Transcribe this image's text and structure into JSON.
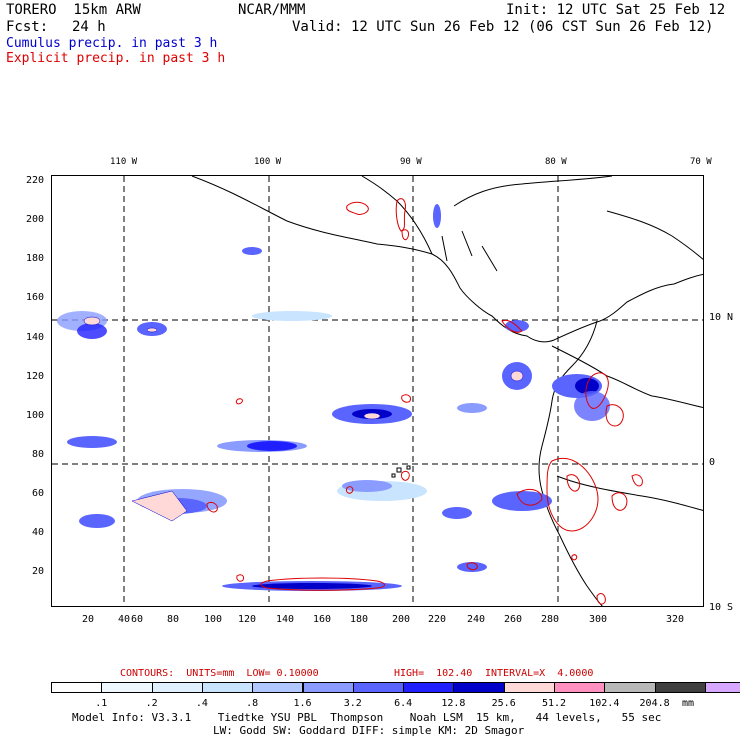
{
  "header": {
    "model": "TORERO  15km ARW",
    "org": "NCAR/MMM",
    "init": "Init: 12 UTC Sat 25 Feb 12",
    "fcst_label": "Fcst:",
    "fcst_value": "24 h",
    "valid": "Valid: 12 UTC Sun 26 Feb 12 (06 CST Sun 26 Feb 12)"
  },
  "legend": {
    "cumulus": "Cumulus precip. in past 3 h",
    "explicit": "Explicit precip. in past 3 h",
    "cumulus_color": "#0000cc",
    "explicit_color": "#dd0000"
  },
  "map": {
    "lon_labels": [
      "110 W",
      "100 W",
      "90 W",
      "80 W",
      "70 W"
    ],
    "lat_labels": [
      "10 N",
      "0",
      "10 S"
    ],
    "y_ticks": [
      "220",
      "200",
      "180",
      "160",
      "140",
      "120",
      "100",
      "80",
      "60",
      "40",
      "20"
    ],
    "x_ticks": [
      "20",
      "40",
      "60",
      "80",
      "100",
      "120",
      "140",
      "160",
      "180",
      "200",
      "220",
      "240",
      "260",
      "280",
      "300",
      "320"
    ]
  },
  "contours": {
    "units": "CONTOURS:  UNITS=mm  LOW= 0.10000",
    "high": "HIGH=  102.40",
    "interval": "INTERVAL=X  4.0000"
  },
  "colorbar": {
    "colors": [
      "#ffffff",
      "#f0f8ff",
      "#e0f0ff",
      "#c8e4ff",
      "#b0c8ff",
      "#8a9cff",
      "#5a64ff",
      "#2020ff",
      "#0000c8",
      "#ffd8d8",
      "#ff90c0",
      "#b8b8b8",
      "#404040",
      "#d8a8ff"
    ],
    "labels": [
      ".1",
      ".2",
      ".4",
      ".8",
      "1.6",
      "3.2",
      "6.4",
      "12.8",
      "25.6",
      "51.2",
      "102.4",
      "204.8"
    ],
    "unit": "mm"
  },
  "footer": {
    "line1": "Model Info: V3.3.1    Tiedtke YSU PBL  Thompson    Noah LSM  15 km,   44 levels,   55 sec",
    "line2": "LW: Godd SW: Goddard DIFF: simple KM: 2D Smagor"
  }
}
